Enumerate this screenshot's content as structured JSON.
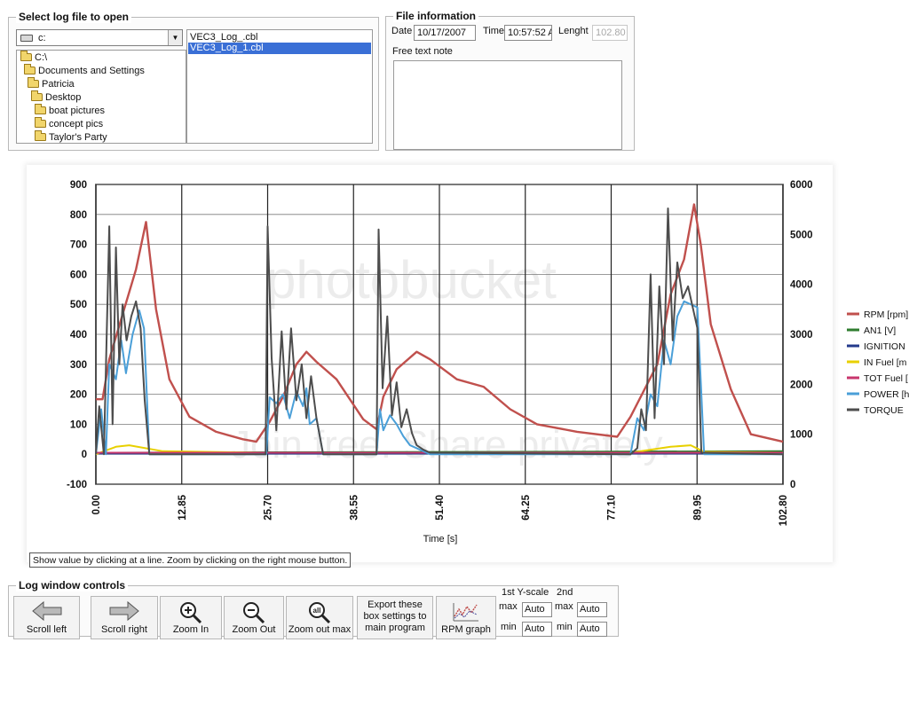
{
  "log_select": {
    "title": "Select log file to open",
    "drive": "c:",
    "tree": [
      "C:\\",
      "Documents and Settings",
      "Patricia",
      "Desktop",
      "boat pictures",
      "concept pics",
      "Taylor's Party"
    ],
    "files": [
      "VEC3_Log_.cbl",
      "VEC3_Log_1.cbl"
    ],
    "selected_file_index": 1
  },
  "file_info": {
    "title": "File information",
    "date_label": "Date",
    "date_value": "10/17/2007",
    "time_label": "Time",
    "time_value": "10:57:52 A",
    "length_label": "Lenght",
    "length_value": "102.80",
    "note_label": "Free text note",
    "note_value": ""
  },
  "watermark": {
    "brand": "photobucket",
    "tagline": "Join free. Share privately."
  },
  "chart_data": {
    "type": "line",
    "xlabel": "Time [s]",
    "x_ticks": [
      "0.00",
      "12.85",
      "25.70",
      "38.55",
      "51.40",
      "64.25",
      "77.10",
      "89.95",
      "102.80"
    ],
    "xlim": [
      0,
      102.8
    ],
    "y_left_ticks": [
      "900",
      "800",
      "700",
      "600",
      "500",
      "400",
      "300",
      "200",
      "100",
      "0",
      "-100"
    ],
    "ylim_left": [
      -100,
      900
    ],
    "y_right_ticks": [
      "6000",
      "5000",
      "4000",
      "3000",
      "2000",
      "1000",
      "0"
    ],
    "ylim_right": [
      0,
      6000
    ],
    "grid": true,
    "legend_position": "right",
    "series": [
      {
        "name": "RPM [rpm]",
        "color": "#c0504d",
        "axis": "right",
        "x": [
          0,
          1,
          2,
          4,
          6,
          7.5,
          9,
          11,
          14,
          18,
          22,
          24,
          26,
          28,
          30,
          31.5,
          33,
          36,
          40,
          42,
          43,
          45,
          48,
          50,
          54,
          58,
          62,
          66,
          72,
          78,
          80,
          84,
          86,
          88,
          89.5,
          90.5,
          92,
          95,
          98,
          102.8
        ],
        "y": [
          1700,
          1700,
          2500,
          3400,
          4300,
          5250,
          3500,
          2100,
          1350,
          1050,
          900,
          850,
          1250,
          1750,
          2400,
          2650,
          2450,
          2100,
          1300,
          1100,
          1750,
          2300,
          2650,
          2500,
          2100,
          1950,
          1500,
          1200,
          1050,
          950,
          1350,
          2400,
          3800,
          4500,
          5600,
          4800,
          3200,
          1900,
          1000,
          850
        ]
      },
      {
        "name": "AN1 [V]",
        "color": "#2f7d2f",
        "axis": "left",
        "x": [
          0,
          102.8
        ],
        "y": [
          5,
          10
        ]
      },
      {
        "name": "IGNITION",
        "color": "#233a8c",
        "axis": "left",
        "x": [
          0,
          102.8
        ],
        "y": [
          2,
          2
        ]
      },
      {
        "name": "IN Fuel [m",
        "color": "#e8d000",
        "axis": "left",
        "x": [
          0,
          3,
          5,
          10,
          25,
          40,
          80,
          86,
          89,
          91,
          102.8
        ],
        "y": [
          0,
          25,
          30,
          10,
          5,
          5,
          5,
          25,
          30,
          8,
          5
        ]
      },
      {
        "name": "TOT Fuel [",
        "color": "#c8366d",
        "axis": "left",
        "x": [
          0,
          102.8
        ],
        "y": [
          5,
          5
        ]
      },
      {
        "name": "POWER [h",
        "color": "#4a9fd8",
        "axis": "left",
        "x": [
          0,
          0.8,
          1.5,
          2,
          3,
          3.8,
          4.5,
          5.5,
          6.5,
          7.2,
          8,
          25.5,
          26,
          27,
          28,
          29,
          30,
          31,
          31.5,
          32,
          33,
          34,
          42,
          42.5,
          43,
          44,
          45,
          46,
          47,
          48,
          49,
          50,
          80,
          81,
          82,
          83,
          84,
          85,
          86,
          87,
          88,
          89,
          90,
          91,
          102.8
        ],
        "y": [
          0,
          150,
          0,
          300,
          250,
          380,
          270,
          400,
          480,
          420,
          0,
          0,
          190,
          170,
          200,
          120,
          210,
          160,
          220,
          100,
          120,
          0,
          0,
          150,
          80,
          130,
          100,
          60,
          30,
          20,
          10,
          0,
          0,
          120,
          80,
          200,
          160,
          380,
          300,
          460,
          510,
          500,
          490,
          0,
          0
        ]
      },
      {
        "name": "TORQUE",
        "color": "#4d4d4d",
        "axis": "left",
        "x": [
          0,
          0.5,
          1.2,
          2,
          2.5,
          3,
          3.5,
          4,
          4.6,
          5.3,
          6,
          6.7,
          7.3,
          8,
          25.4,
          25.7,
          26.3,
          27,
          27.8,
          28.5,
          29.2,
          30,
          30.8,
          31.5,
          32.2,
          33,
          34,
          42,
          42.3,
          42.9,
          43.6,
          44.3,
          45,
          45.7,
          46.5,
          47.3,
          48,
          49,
          50,
          80,
          81,
          81.6,
          82.3,
          83,
          83.6,
          84.3,
          85,
          85.6,
          86.3,
          87,
          87.8,
          88.6,
          89.2,
          90,
          90.6,
          102.8
        ],
        "y": [
          0,
          160,
          0,
          760,
          100,
          690,
          300,
          500,
          380,
          460,
          510,
          420,
          180,
          0,
          0,
          760,
          320,
          80,
          410,
          150,
          420,
          180,
          300,
          120,
          260,
          120,
          0,
          0,
          750,
          220,
          460,
          130,
          240,
          90,
          150,
          70,
          30,
          15,
          5,
          0,
          20,
          150,
          80,
          600,
          120,
          560,
          300,
          820,
          380,
          640,
          520,
          560,
          500,
          420,
          5,
          0
        ]
      }
    ],
    "hint": "Show value by clicking at a line. Zoom by clicking on the right mouse button."
  },
  "controls": {
    "title": "Log window controls",
    "scroll_left": "Scroll left",
    "scroll_right": "Scroll right",
    "zoom_in": "Zoom In",
    "zoom_out": "Zoom Out",
    "zoom_out_max": "Zoom out max",
    "zoom_out_max_icon_text": "all",
    "export_line1": "Export these",
    "export_line2": "box settings to",
    "export_line3": "main program",
    "rpm_graph": "RPM graph",
    "y1_label": "1st Y-scale",
    "y2_label": "2nd",
    "max_label": "max",
    "min_label": "min",
    "y1_max": "Auto",
    "y1_min": "Auto",
    "y2_max": "Auto",
    "y2_min": "Auto"
  }
}
